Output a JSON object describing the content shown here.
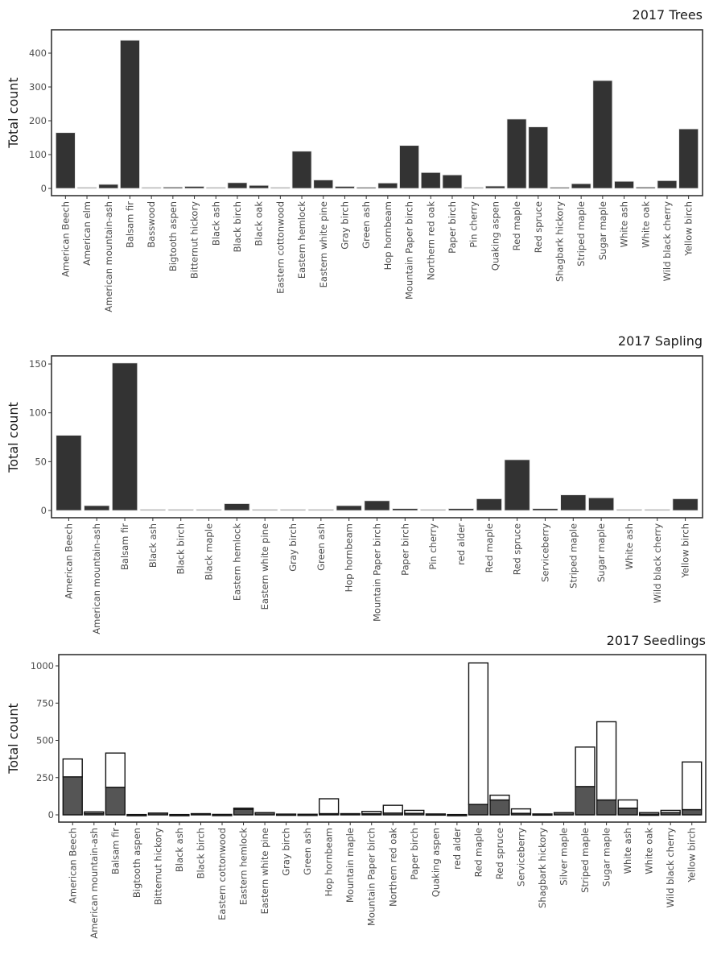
{
  "colors": {
    "bar_fill": "#333333",
    "bar_stroke": "#e6e6e6",
    "stack_lower_fill": "#555555",
    "stack_upper_fill": "#ffffff",
    "stack_stroke": "#111111",
    "frame": "#333333",
    "text": "#4d4d4d"
  },
  "chart_data": [
    {
      "type": "bar",
      "title": "2017 Trees",
      "xlabel": "",
      "ylabel": "Total count",
      "ylim": [
        0,
        470
      ],
      "yticks": [
        0,
        100,
        200,
        300,
        400
      ],
      "grid": false,
      "categories": [
        "American Beech",
        "American elm",
        "American mountain-ash",
        "Balsam fir",
        "Basswood",
        "Bigtooth aspen",
        "Bitternut hickory",
        "Black ash",
        "Black birch",
        "Black oak",
        "Eastern cottonwood",
        "Eastern hemlock",
        "Eastern white pine",
        "Gray birch",
        "Green ash",
        "Hop hornbeam",
        "Mountain Paper birch",
        "Northern red oak",
        "Paper birch",
        "Pin cherry",
        "Quaking aspen",
        "Red maple",
        "Red spruce",
        "Shagbark hickory",
        "Striped maple",
        "Sugar maple",
        "White ash",
        "White oak",
        "Wild black cherry",
        "Yellow birch"
      ],
      "values": [
        165,
        1,
        12,
        438,
        1,
        4,
        6,
        1,
        17,
        9,
        1,
        110,
        25,
        6,
        3,
        16,
        127,
        47,
        40,
        1,
        7,
        205,
        182,
        2,
        14,
        319,
        21,
        4,
        23,
        176
      ]
    },
    {
      "type": "bar",
      "title": "2017 Sapling",
      "xlabel": "",
      "ylabel": "Total count",
      "ylim": [
        0,
        157
      ],
      "yticks": [
        0,
        50,
        100,
        150
      ],
      "grid": false,
      "categories": [
        "American Beech",
        "American mountain-ash",
        "Balsam fir",
        "Black ash",
        "Black birch",
        "Black maple",
        "Eastern hemlock",
        "Eastern white pine",
        "Gray birch",
        "Green ash",
        "Hop hornbeam",
        "Mountain Paper birch",
        "Paper birch",
        "Pin cherry",
        "red alder",
        "Red maple",
        "Red spruce",
        "Serviceberry",
        "Striped maple",
        "Sugar maple",
        "White ash",
        "Wild black cherry",
        "Yellow birch"
      ],
      "values": [
        77,
        5,
        151,
        1,
        1,
        1,
        7,
        1,
        1,
        1,
        5,
        10,
        2,
        1,
        2,
        12,
        52,
        2,
        16,
        13,
        1,
        1,
        12
      ]
    },
    {
      "type": "bar",
      "stacked": true,
      "title": "2017 Seedlings",
      "xlabel": "",
      "ylabel": "Total count",
      "ylim": [
        0,
        1060
      ],
      "yticks": [
        0,
        250,
        500,
        750,
        1000
      ],
      "grid": false,
      "categories": [
        "American Beech",
        "American mountain-ash",
        "Balsam fir",
        "Bigtooth aspen",
        "Bitternut hickory",
        "Black ash",
        "Black birch",
        "Eastern cottonwood",
        "Eastern hemlock",
        "Eastern white pine",
        "Gray birch",
        "Green ash",
        "Hop hornbeam",
        "Mountain maple",
        "Mountain Paper birch",
        "Northern red oak",
        "Paper birch",
        "Quaking aspen",
        "red alder",
        "Red maple",
        "Red spruce",
        "Serviceberry",
        "Shagbark hickory",
        "Silver maple",
        "Striped maple",
        "Sugar maple",
        "White ash",
        "White oak",
        "Wild black cherry",
        "Yellow birch"
      ],
      "series": [
        {
          "name": "lower (dark)",
          "values": [
            255,
            10,
            185,
            2,
            12,
            2,
            8,
            3,
            40,
            15,
            5,
            4,
            8,
            8,
            8,
            12,
            10,
            6,
            2,
            70,
            100,
            10,
            6,
            15,
            190,
            100,
            45,
            5,
            15,
            35
          ]
        },
        {
          "name": "upper (white)",
          "values": [
            120,
            10,
            230,
            0,
            0,
            0,
            0,
            0,
            5,
            0,
            0,
            0,
            100,
            0,
            15,
            52,
            20,
            0,
            0,
            950,
            32,
            30,
            0,
            0,
            265,
            525,
            55,
            10,
            15,
            320
          ]
        }
      ]
    }
  ]
}
